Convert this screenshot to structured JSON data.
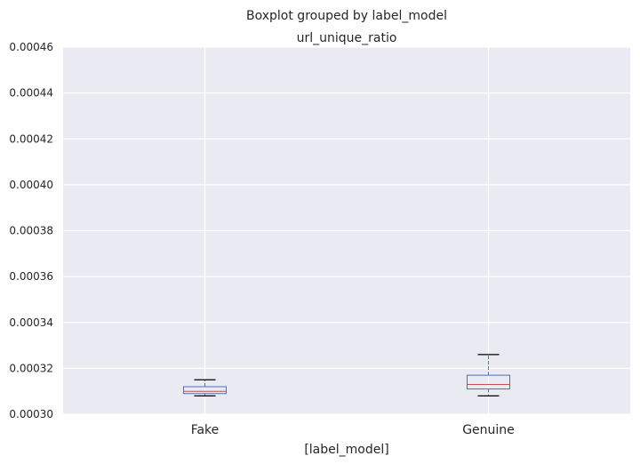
{
  "chart_data": {
    "type": "boxplot",
    "suptitle": "Boxplot grouped by label_model",
    "title": "url_unique_ratio",
    "xlabel": "[label_model]",
    "ylabel": "",
    "ylim": [
      0.0003,
      0.00046
    ],
    "yticks": [
      "0.00030",
      "0.00032",
      "0.00034",
      "0.00036",
      "0.00038",
      "0.00040",
      "0.00042",
      "0.00044",
      "0.00046"
    ],
    "ytick_values": [
      0.0003,
      0.00032,
      0.00034,
      0.00036,
      0.00038,
      0.0004,
      0.00042,
      0.00044,
      0.00046
    ],
    "categories": [
      "Fake",
      "Genuine"
    ],
    "boxes": [
      {
        "category": "Fake",
        "whisker_low": 0.000308,
        "q1": 0.000309,
        "median": 0.00031,
        "q3": 0.000312,
        "whisker_high": 0.000315
      },
      {
        "category": "Genuine",
        "whisker_low": 0.000308,
        "q1": 0.000311,
        "median": 0.000313,
        "q3": 0.000317,
        "whisker_high": 0.000326
      }
    ],
    "grid": true,
    "colors": {
      "background": "#eaeaf2",
      "grid": "#ffffff",
      "box": "#4c72b0",
      "median": "#c44e52",
      "cap": "#000000"
    }
  }
}
